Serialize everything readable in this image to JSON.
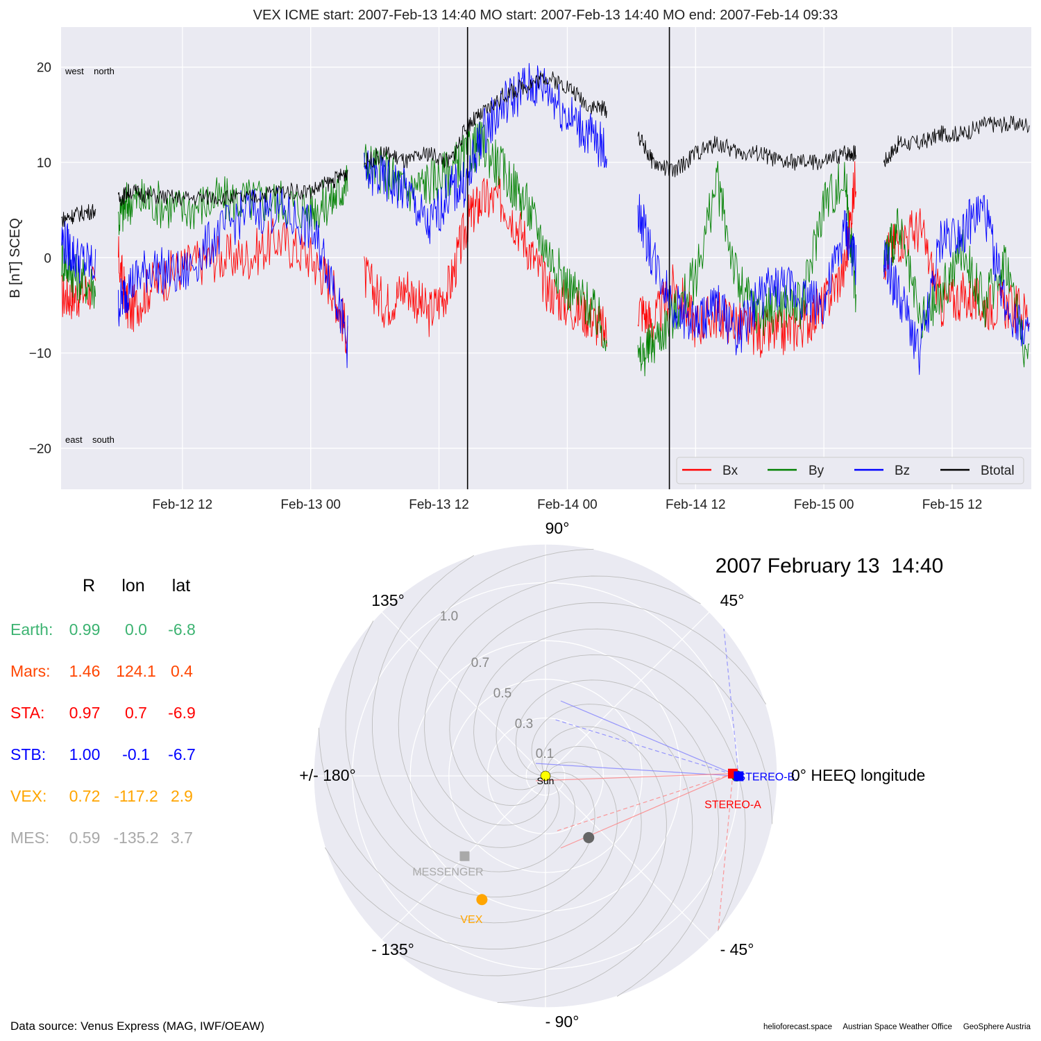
{
  "title": "VEX    ICME start: 2007-Feb-13 14:40   MO start: 2007-Feb-13 14:40   MO end: 2007-Feb-14 09:33",
  "date_title": "2007 February 13  14:40",
  "corner_labels": {
    "top": "west    north",
    "bottom": "east    south"
  },
  "chart_data": [
    {
      "type": "line",
      "ylabel": "B [nT] SCEQ",
      "xlabel": "",
      "x_unit": "hours since 2007-02-12 00:00",
      "xlim": [
        0.65,
        91.4
      ],
      "ylim": [
        -24.3,
        24.2
      ],
      "yticks": [
        -20,
        -10,
        0,
        10,
        20
      ],
      "ytick_labels": [
        "−20",
        "−10",
        "0",
        "10",
        "20"
      ],
      "xticks": [
        12,
        24,
        36,
        48,
        60,
        72,
        84
      ],
      "xtick_labels": [
        "Feb-12 12",
        "Feb-13 00",
        "Feb-13 12",
        "Feb-14 00",
        "Feb-14 12",
        "Feb-15 00",
        "Feb-15 12"
      ],
      "vlines": [
        38.67,
        57.55
      ],
      "grid": true,
      "legend_position": "lower-right",
      "data_gaps_hours": [
        [
          3.9,
          6.0
        ],
        [
          27.5,
          29.0
        ],
        [
          51.8,
          54.6
        ],
        [
          75.0,
          77.6
        ]
      ],
      "series": [
        {
          "name": "Bx",
          "color": "#ff0000",
          "x": [
            0.7,
            2,
            3.8,
            6,
            7,
            9,
            12,
            15,
            18,
            21,
            24,
            26,
            27.4,
            29,
            31,
            33,
            35,
            37,
            38.7,
            40,
            42,
            44,
            46,
            48,
            50,
            51.7,
            54.6,
            56,
            58,
            60,
            62,
            64,
            66,
            68,
            70,
            72,
            74,
            75,
            77.6,
            79,
            81,
            83,
            85,
            87,
            89,
            91.3
          ],
          "y": [
            -4,
            -4,
            -3,
            0,
            -6,
            -3,
            -1,
            0,
            0,
            2,
            0,
            -3,
            -8,
            -2,
            -5,
            -3,
            -6,
            -3,
            4,
            6,
            6,
            2,
            -3,
            -5,
            -6,
            -8,
            -5,
            -7,
            -3,
            -7,
            -6,
            -7,
            -8,
            -8,
            -7,
            -5,
            -1,
            9,
            0,
            2,
            3,
            -5,
            -4,
            -5,
            -5,
            -6
          ]
        },
        {
          "name": "By",
          "color": "#008000",
          "x": [
            0.7,
            2,
            3.8,
            6,
            7,
            9,
            12,
            15,
            18,
            21,
            24,
            26,
            27.4,
            29,
            31,
            33,
            35,
            37,
            38.7,
            40,
            42,
            44,
            46,
            48,
            50,
            51.7,
            54.6,
            56,
            58,
            60,
            62,
            64,
            66,
            68,
            70,
            72,
            74,
            75,
            77.6,
            79,
            81,
            83,
            85,
            87,
            89,
            91.3
          ],
          "y": [
            0,
            -2,
            -3,
            4,
            6,
            6,
            5,
            6,
            6,
            6,
            5,
            6,
            8,
            10,
            9,
            7,
            8,
            9,
            11,
            12,
            9,
            6,
            1,
            -3,
            -5,
            -8,
            -11,
            -9,
            -6,
            -2,
            8,
            -3,
            -6,
            -5,
            -5,
            6,
            8,
            -4,
            0,
            3,
            -7,
            -4,
            1,
            -5,
            0,
            -12
          ]
        },
        {
          "name": "Bz",
          "color": "#0000ff",
          "x": [
            0.7,
            2,
            3.8,
            6,
            7,
            9,
            12,
            15,
            18,
            21,
            24,
            26,
            27.4,
            29,
            31,
            33,
            35,
            37,
            38.7,
            40,
            42,
            44,
            46,
            48,
            50,
            51.7,
            54.6,
            56,
            58,
            60,
            62,
            64,
            66,
            68,
            70,
            72,
            74,
            75,
            77.6,
            79,
            81,
            83,
            85,
            87,
            89,
            91.3
          ],
          "y": [
            2,
            0,
            -1,
            -5,
            -3,
            -1,
            -2,
            2,
            5,
            5,
            3,
            -2,
            -9,
            9,
            8,
            7,
            3,
            7,
            8,
            13,
            16,
            18,
            18,
            15,
            13,
            11,
            5,
            0,
            -5,
            -7,
            -5,
            -8,
            -4,
            -3,
            -4,
            -5,
            3,
            -1,
            0,
            -4,
            -10,
            2,
            3,
            5,
            -5,
            -8
          ]
        },
        {
          "name": "Btotal",
          "color": "#000000",
          "x": [
            0.7,
            2,
            3.8,
            6,
            7,
            9,
            12,
            15,
            18,
            21,
            24,
            26,
            27.4,
            29,
            31,
            33,
            35,
            37,
            38.7,
            40,
            42,
            44,
            46,
            48,
            50,
            51.7,
            54.6,
            56,
            58,
            60,
            62,
            64,
            66,
            68,
            70,
            72,
            74,
            75,
            77.6,
            79,
            81,
            83,
            85,
            87,
            89,
            91.3
          ],
          "y": [
            4,
            4.5,
            5,
            6,
            7,
            6.5,
            6.2,
            6.4,
            6.2,
            7,
            7,
            8,
            9,
            10,
            11,
            10,
            11,
            10,
            14,
            15,
            17,
            18,
            19,
            18,
            16,
            15.5,
            13,
            10,
            9,
            11,
            12,
            11,
            11,
            10,
            10,
            10,
            11,
            11,
            10,
            12,
            12,
            13,
            13,
            14,
            14,
            14
          ]
        }
      ]
    },
    {
      "type": "polar",
      "radial_ticks": [
        0.1,
        0.3,
        0.5,
        0.7,
        1.0
      ],
      "radial_tick_labels": [
        "0.1",
        "0.3",
        "0.5",
        "0.7",
        "1.0"
      ],
      "angle_labels": {
        "a0": "0° HEEQ longitude",
        "a45": "45°",
        "a90": "90°",
        "a135": "135°",
        "a180": "+/- 180°",
        "am135": "- 135°",
        "am90": "- 90°",
        "am45": "- 45°"
      },
      "bodies": [
        {
          "name": "Sun",
          "label": "Sun",
          "r": 0.0,
          "lon": 0.0,
          "color": "#ffff00",
          "marker": "circle"
        },
        {
          "name": "Earth",
          "label": "",
          "r": 0.99,
          "lon": 0.0,
          "color": "#008000",
          "marker": "circle"
        },
        {
          "name": "Mercury",
          "label": "",
          "r": 0.39,
          "lon": -55.0,
          "color": "#666666",
          "marker": "circle"
        },
        {
          "name": "STEREO-A",
          "label": "STEREO-A",
          "r": 0.97,
          "lon": 0.7,
          "color": "#ff0000",
          "marker": "square"
        },
        {
          "name": "STEREO-B",
          "label": "STEREO-B",
          "r": 1.0,
          "lon": -0.1,
          "color": "#0000ff",
          "marker": "square"
        },
        {
          "name": "VEX",
          "label": "VEX",
          "r": 0.72,
          "lon": -117.2,
          "color": "#ffa500",
          "marker": "circle"
        },
        {
          "name": "MESSENGER",
          "label": "MESSENGER",
          "r": 0.59,
          "lon": -135.2,
          "color": "#a9a9a9",
          "marker": "square"
        }
      ]
    }
  ],
  "position_table": {
    "headers": [
      "R",
      "lon",
      "lat"
    ],
    "rows": [
      {
        "name": "Earth:",
        "R": "0.99",
        "lon": "0.0",
        "lat": "-6.8",
        "color": "#3cb371"
      },
      {
        "name": "Mars:",
        "R": "1.46",
        "lon": "124.1",
        "lat": "0.4",
        "color": "#ff4500"
      },
      {
        "name": "STA:",
        "R": "0.97",
        "lon": "0.7",
        "lat": "-6.9",
        "color": "#ff0000"
      },
      {
        "name": "STB:",
        "R": "1.00",
        "lon": "-0.1",
        "lat": "-6.7",
        "color": "#0000ff"
      },
      {
        "name": "VEX:",
        "R": "0.72",
        "lon": "-117.2",
        "lat": "2.9",
        "color": "#ffa500"
      },
      {
        "name": "MES:",
        "R": "0.59",
        "lon": "-135.2",
        "lat": "3.7",
        "color": "#a9a9a9"
      }
    ]
  },
  "footer": {
    "source": "Data source: Venus Express (MAG, IWF/OEAW)",
    "credits": "helioforecast.space     Austrian Space Weather Office     GeoSphere Austria"
  }
}
